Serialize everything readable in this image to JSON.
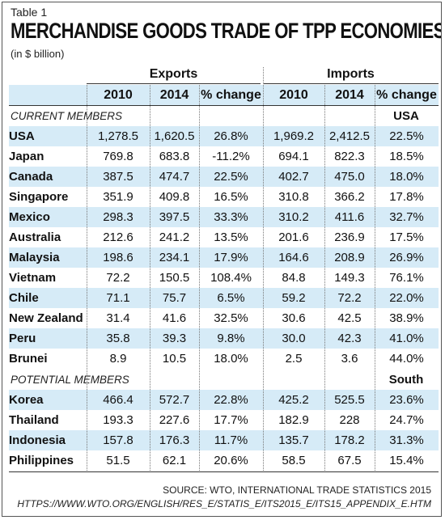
{
  "table_label": "Table 1",
  "title": "MERCHANDISE GOODS TRADE OF TPP ECONOMIES",
  "subtitle": "(in $ billion)",
  "groups": {
    "exports": "Exports",
    "imports": "Imports"
  },
  "columns": [
    "2010",
    "2014",
    "% change",
    "2010",
    "2014",
    "% change"
  ],
  "sections": [
    {
      "label": "CURRENT MEMBERS",
      "note": "USA",
      "rows": [
        [
          "USA",
          "1,278.5",
          "1,620.5",
          "26.8%",
          "1,969.2",
          "2,412.5",
          "22.5%"
        ],
        [
          "Japan",
          "769.8",
          "683.8",
          "-11.2%",
          "694.1",
          "822.3",
          "18.5%"
        ],
        [
          "Canada",
          "387.5",
          "474.7",
          "22.5%",
          "402.7",
          "475.0",
          "18.0%"
        ],
        [
          "Singapore",
          "351.9",
          "409.8",
          "16.5%",
          "310.8",
          "366.2",
          "17.8%"
        ],
        [
          "Mexico",
          "298.3",
          "397.5",
          "33.3%",
          "310.2",
          "411.6",
          "32.7%"
        ],
        [
          "Australia",
          "212.6",
          "241.2",
          "13.5%",
          "201.6",
          "236.9",
          "17.5%"
        ],
        [
          "Malaysia",
          "198.6",
          "234.1",
          "17.9%",
          "164.6",
          "208.9",
          "26.9%"
        ],
        [
          "Vietnam",
          "72.2",
          "150.5",
          "108.4%",
          "84.8",
          "149.3",
          "76.1%"
        ],
        [
          "Chile",
          "71.1",
          "75.7",
          "6.5%",
          "59.2",
          "72.2",
          "22.0%"
        ],
        [
          "New Zealand",
          "31.4",
          "41.6",
          "32.5%",
          "30.6",
          "42.5",
          "38.9%"
        ],
        [
          "Peru",
          "35.8",
          "39.3",
          "9.8%",
          "30.0",
          "42.3",
          "41.0%"
        ],
        [
          "Brunei",
          "8.9",
          "10.5",
          "18.0%",
          "2.5",
          "3.6",
          "44.0%"
        ]
      ]
    },
    {
      "label": "POTENTIAL MEMBERS",
      "note": "South",
      "rows": [
        [
          "Korea",
          "466.4",
          "572.7",
          "22.8%",
          "425.2",
          "525.5",
          "23.6%"
        ],
        [
          "Thailand",
          "193.3",
          "227.6",
          "17.7%",
          "182.9",
          "228",
          "24.7%"
        ],
        [
          "Indonesia",
          "157.8",
          "176.3",
          "11.7%",
          "135.7",
          "178.2",
          "31.3%"
        ],
        [
          "Philippines",
          "51.5",
          "62.1",
          "20.6%",
          "58.5",
          "67.5",
          "15.4%"
        ]
      ]
    }
  ],
  "source": {
    "line1": "SOURCE: WTO, INTERNATIONAL TRADE STATISTICS 2015",
    "line2": "HTTPS://WWW.WTO.ORG/ENGLISH/RES_E/STATIS_E/ITS2015_E/ITS15_APPENDIX_E.HTM"
  },
  "colors": {
    "shade": "#d6ebf7",
    "rule": "#333333",
    "text": "#111111"
  }
}
